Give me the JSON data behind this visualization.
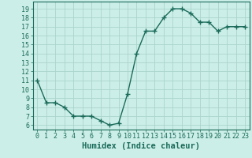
{
  "x": [
    0,
    1,
    2,
    3,
    4,
    5,
    6,
    7,
    8,
    9,
    10,
    11,
    12,
    13,
    14,
    15,
    16,
    17,
    18,
    19,
    20,
    21,
    22,
    23
  ],
  "y": [
    11,
    8.5,
    8.5,
    8.0,
    7.0,
    7.0,
    7.0,
    6.5,
    6.0,
    6.2,
    9.5,
    14.0,
    16.5,
    16.5,
    18.0,
    19.0,
    19.0,
    18.5,
    17.5,
    17.5,
    16.5,
    17.0,
    17.0,
    17.0
  ],
  "line_color": "#1a6b5a",
  "marker": "+",
  "marker_size": 4.0,
  "linewidth": 1.0,
  "bg_color": "#cceee8",
  "grid_color": "#aad4cc",
  "xlabel": "Humidex (Indice chaleur)",
  "xlabel_fontsize": 7.5,
  "xtick_labels": [
    "0",
    "1",
    "2",
    "3",
    "4",
    "5",
    "6",
    "7",
    "8",
    "9",
    "10",
    "11",
    "12",
    "13",
    "14",
    "15",
    "16",
    "17",
    "18",
    "19",
    "20",
    "21",
    "22",
    "23"
  ],
  "ytick_start": 6,
  "ytick_end": 19,
  "tick_fontsize": 6.0,
  "ylim": [
    5.5,
    19.8
  ],
  "xlim": [
    -0.5,
    23.5
  ]
}
